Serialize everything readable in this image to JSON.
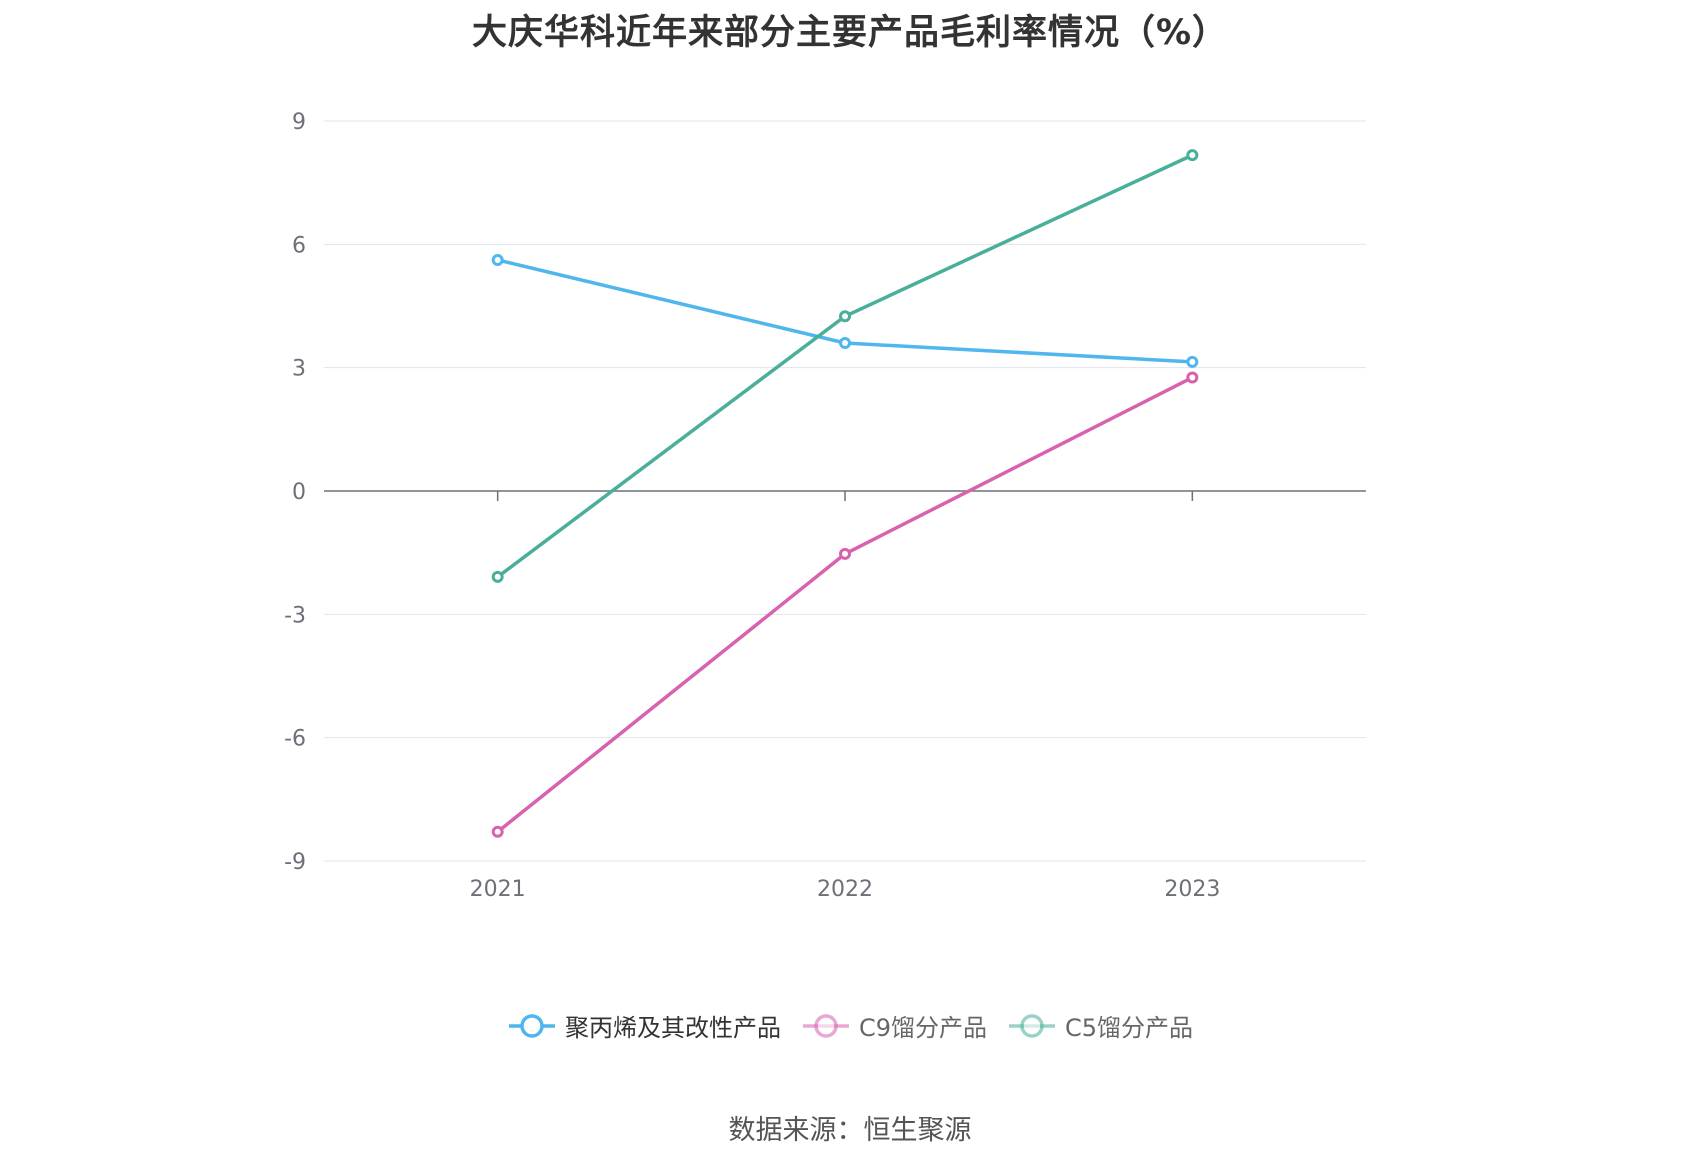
{
  "title": "大庆华科近年来部分主要产品毛利率情况（%）",
  "source": "数据来源：恒生聚源",
  "chart_data": {
    "type": "line",
    "title": "大庆华科近年来部分主要产品毛利率情况（%）",
    "xlabel": "",
    "ylabel": "",
    "categories": [
      "2021",
      "2022",
      "2023"
    ],
    "ylim": [
      -9,
      9
    ],
    "yticks": [
      9,
      6,
      3,
      0,
      -3,
      -6,
      -9
    ],
    "grid": true,
    "legend_position": "bottom",
    "series": [
      {
        "name": "聚丙烯及其改性产品",
        "color": "#4fb6ee",
        "values": [
          5.62,
          3.6,
          3.14
        ],
        "legend_active": true
      },
      {
        "name": "C9馏分产品",
        "color": "#d862ae",
        "values": [
          -8.29,
          -1.53,
          2.76
        ],
        "legend_active": false
      },
      {
        "name": "C5馏分产品",
        "color": "#4aaf9a",
        "values": [
          -2.09,
          4.25,
          8.17
        ],
        "legend_active": false
      }
    ]
  }
}
